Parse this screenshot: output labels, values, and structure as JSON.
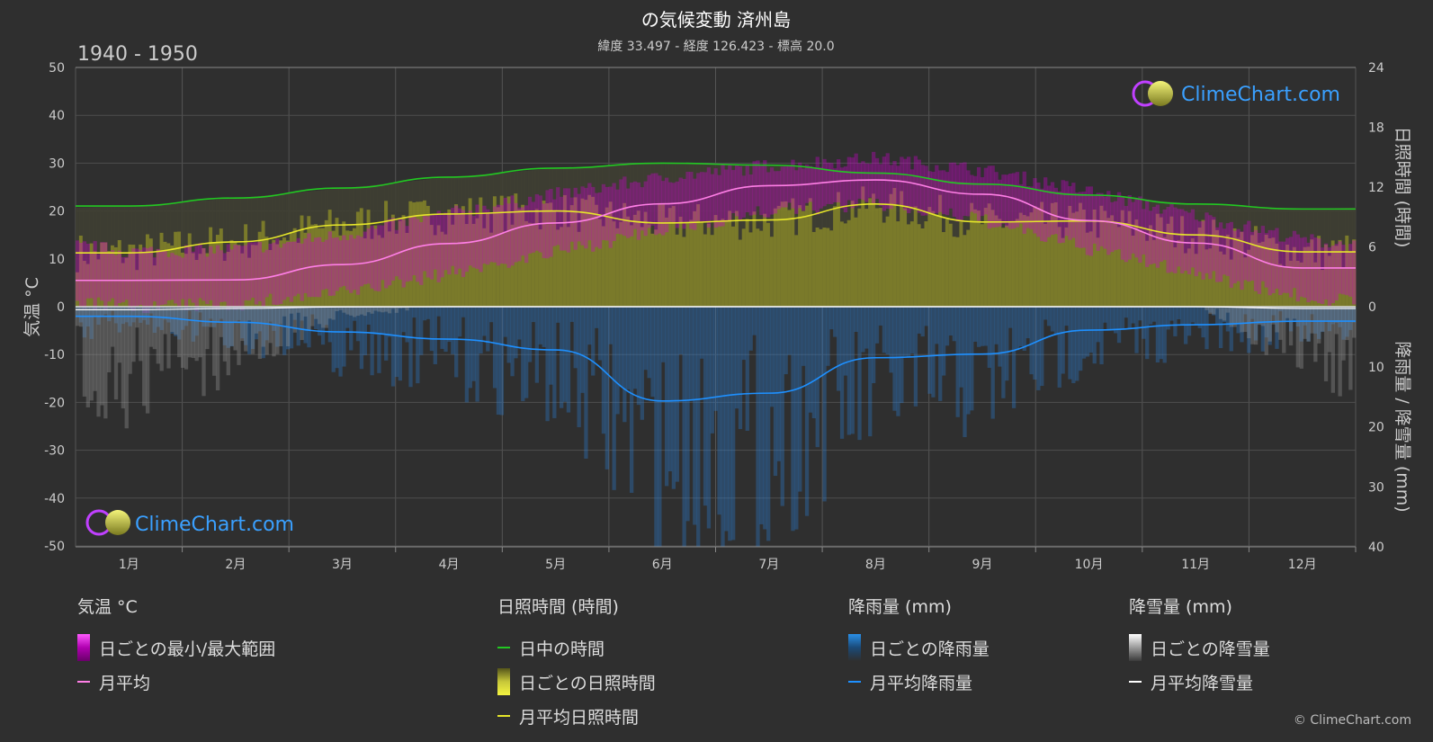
{
  "header": {
    "title": "の気候変動 済州島",
    "subtitle": "緯度 33.497 - 経度 126.423 - 標高 20.0",
    "period": "1940 - 1950"
  },
  "brand": {
    "logo_text": "ClimeChart.com",
    "copyright": "© ClimeChart.com"
  },
  "colors": {
    "background": "#2f2f2f",
    "daylight": "#22c822",
    "sunshine_avg": "#e6e62a",
    "temp_avg": "#ff7fe6",
    "temp_range": "#d000d0",
    "rain_avg": "#1e90ff",
    "rain_daily": "#2a7fd4",
    "snow_avg": "#ffffff",
    "sunshine_daily": "#8f8f28"
  },
  "chart_data": {
    "type": "line",
    "categories": [
      "1月",
      "2月",
      "3月",
      "4月",
      "5月",
      "6月",
      "7月",
      "8月",
      "9月",
      "10月",
      "11月",
      "12月"
    ],
    "left_axis": {
      "label": "気温 °C",
      "ticks": [
        50,
        40,
        30,
        20,
        10,
        0,
        -10,
        -20,
        -30,
        -40,
        -50
      ],
      "ylim": [
        -50,
        50
      ]
    },
    "right_axis_top": {
      "label": "日照時間 (時間)",
      "ticks": [
        24,
        18,
        12,
        6,
        0
      ],
      "ylim": [
        0,
        24
      ]
    },
    "right_axis_bottom": {
      "label": "降雨量 / 降雪量 (mm)",
      "ticks": [
        0,
        10,
        20,
        30,
        40
      ],
      "ylim": [
        0,
        40
      ]
    },
    "series": [
      {
        "name": "日中の時間",
        "unit": "hours",
        "values": [
          10.1,
          10.9,
          11.9,
          13.0,
          13.9,
          14.4,
          14.2,
          13.4,
          12.3,
          11.2,
          10.3,
          9.8
        ]
      },
      {
        "name": "月平均日照時間",
        "unit": "hours",
        "values": [
          5.4,
          6.5,
          8.2,
          9.3,
          9.6,
          8.4,
          8.7,
          10.3,
          8.5,
          8.6,
          7.2,
          5.5
        ]
      },
      {
        "name": "月平均",
        "unit": "°C",
        "values": [
          5.5,
          5.6,
          8.8,
          13.2,
          17.5,
          21.5,
          25.3,
          26.5,
          23.5,
          18.0,
          13.3,
          8.1
        ]
      },
      {
        "name": "日ごとの最小/最大範囲",
        "unit": "°C",
        "min": [
          1.5,
          2.0,
          4.5,
          8.5,
          13.0,
          17.5,
          21.5,
          23.0,
          19.5,
          13.5,
          8.5,
          3.5
        ],
        "max": [
          10.0,
          10.5,
          13.5,
          18.0,
          22.0,
          25.5,
          28.0,
          29.5,
          27.0,
          22.5,
          17.5,
          12.5
        ]
      },
      {
        "name": "月平均降雨量",
        "unit": "mm",
        "values": [
          1.6,
          2.6,
          4.2,
          5.4,
          7.2,
          15.7,
          14.4,
          8.5,
          7.9,
          3.9,
          3.0,
          2.4
        ]
      },
      {
        "name": "月平均降雪量",
        "unit": "mm",
        "values": [
          0.5,
          0.3,
          0.05,
          0,
          0,
          0,
          0,
          0,
          0,
          0,
          0,
          0.3
        ]
      }
    ]
  },
  "legend": {
    "groups": [
      {
        "title": "気温 °C",
        "items": [
          {
            "type": "grad-pink",
            "label": "日ごとの最小/最大範囲"
          },
          {
            "type": "line-pink",
            "label": "月平均"
          }
        ]
      },
      {
        "title": "日照時間 (時間)",
        "items": [
          {
            "type": "line-green",
            "label": "日中の時間"
          },
          {
            "type": "grad-yellow",
            "label": "日ごとの日照時間"
          },
          {
            "type": "line-yellow",
            "label": "月平均日照時間"
          }
        ]
      },
      {
        "title": "降雨量 (mm)",
        "items": [
          {
            "type": "grad-blue",
            "label": "日ごとの降雨量"
          },
          {
            "type": "line-blue",
            "label": "月平均降雨量"
          }
        ]
      },
      {
        "title": "降雪量 (mm)",
        "items": [
          {
            "type": "grad-white",
            "label": "日ごとの降雪量"
          },
          {
            "type": "line-white",
            "label": "月平均降雪量"
          }
        ]
      }
    ]
  }
}
